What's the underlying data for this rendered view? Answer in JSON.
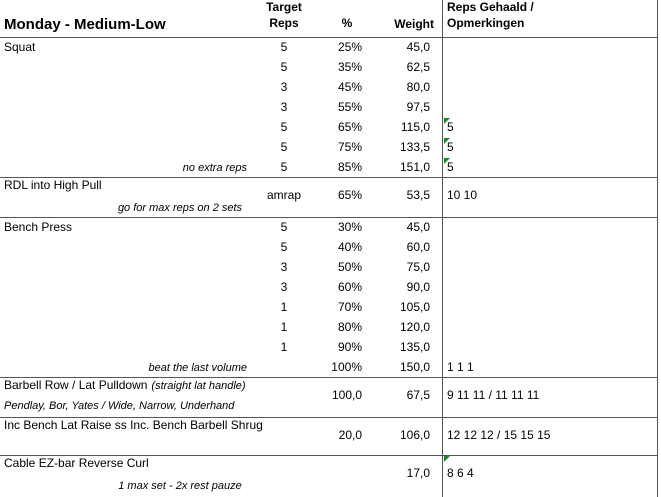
{
  "header": {
    "title": "Monday - Medium-Low",
    "target_reps": [
      "Target",
      "Reps"
    ],
    "percent": "%",
    "weight": "Weight",
    "reps_notes": [
      "Reps Gehaald /",
      "Opmerkingen"
    ]
  },
  "exercises": [
    {
      "name": "Squat",
      "note": "no extra reps",
      "sets": [
        {
          "reps": 5,
          "percent": "25%",
          "weight": "45,0"
        },
        {
          "reps": 5,
          "percent": "35%",
          "weight": "62,5"
        },
        {
          "reps": 3,
          "percent": "45%",
          "weight": "80,0"
        },
        {
          "reps": 3,
          "percent": "55%",
          "weight": "97,5"
        },
        {
          "reps": 5,
          "percent": "65%",
          "weight": "115,0",
          "done": "5"
        },
        {
          "reps": 5,
          "percent": "75%",
          "weight": "133,5",
          "done": "5"
        },
        {
          "reps": 5,
          "percent": "85%",
          "weight": "151,0",
          "done": "5"
        }
      ]
    },
    {
      "name": "RDL into High Pull",
      "note": "go for max reps on 2 sets",
      "sets": [
        {
          "reps": "amrap",
          "percent": "65%",
          "weight": "53,5",
          "done": "10 10"
        }
      ]
    },
    {
      "name": "Bench Press",
      "note": "beat the last volume",
      "sets": [
        {
          "reps": 5,
          "percent": "30%",
          "weight": "45,0"
        },
        {
          "reps": 5,
          "percent": "40%",
          "weight": "60,0"
        },
        {
          "reps": 3,
          "percent": "50%",
          "weight": "75,0"
        },
        {
          "reps": 3,
          "percent": "60%",
          "weight": "90,0"
        },
        {
          "reps": 1,
          "percent": "70%",
          "weight": "105,0"
        },
        {
          "reps": 1,
          "percent": "80%",
          "weight": "120,0"
        },
        {
          "reps": 1,
          "percent": "90%",
          "weight": "135,0"
        },
        {
          "percent": "100%",
          "weight": "150,0",
          "done": "1 1 1"
        }
      ]
    },
    {
      "name": "Barbell Row / Lat Pulldown",
      "name_note": "(straight lat handle)",
      "note": "Pendlay, Bor, Yates / Wide, Narrow, Underhand",
      "sets": [
        {
          "percent": "100,0",
          "weight": "67,5",
          "done": "9 11 11 / 11 11 11"
        }
      ]
    },
    {
      "name": "Inc Bench Lat Raise ss Inc. Bench Barbell Shrug",
      "sets": [
        {
          "percent": "20,0",
          "weight": "106,0",
          "done": "12 12 12 / 15 15 15"
        }
      ]
    },
    {
      "name": "Cable EZ-bar Reverse Curl",
      "note": "1 max set - 2x rest pauze",
      "sets": [
        {
          "weight": "17,0",
          "done": "8 6 4"
        }
      ]
    }
  ]
}
